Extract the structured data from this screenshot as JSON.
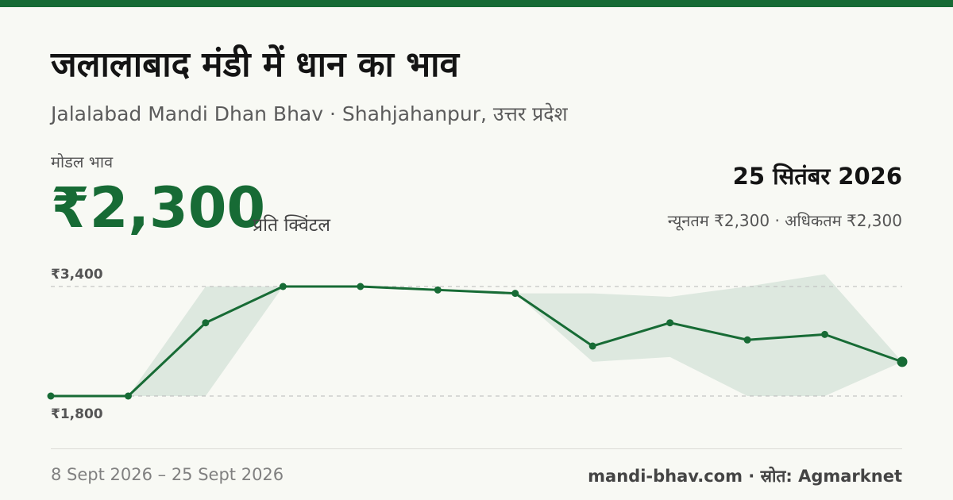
{
  "header": {
    "title": "जलालाबाद मंडी में धान का भाव",
    "subtitle": "Jalalabad Mandi Dhan Bhav · Shahjahanpur, उत्तर प्रदेश"
  },
  "price": {
    "label": "मोडल भाव",
    "value": "₹2,300",
    "unit": "प्रति क्विंटल"
  },
  "latest": {
    "date": "25 सितंबर 2026",
    "minmax": "न्यूनतम ₹2,300 · अधिकतम ₹2,300"
  },
  "footer": {
    "date_range": "8 Sept 2026 – 25 Sept 2026",
    "source": "mandi-bhav.com · स्रोत: Agmarknet"
  },
  "colors": {
    "accent": "#176b35",
    "band": "#dde8df",
    "grid": "#b9b9b9"
  },
  "chart_data": {
    "type": "line",
    "ylim": [
      1800,
      3400
    ],
    "ytick_labels": {
      "max": "₹3,400",
      "min": "₹1,800"
    },
    "series": [
      {
        "values": [
          1800,
          1800,
          2870,
          3400,
          3400,
          3350,
          3300,
          2530,
          2870,
          2620,
          2700,
          2300
        ]
      }
    ],
    "band": {
      "min": [
        1800,
        1800,
        1800,
        3400,
        3400,
        3350,
        3300,
        2300,
        2370,
        1800,
        1800,
        2300
      ],
      "max": [
        1800,
        1800,
        3400,
        3400,
        3400,
        3350,
        3300,
        3300,
        3250,
        3400,
        3580,
        2300
      ]
    }
  }
}
